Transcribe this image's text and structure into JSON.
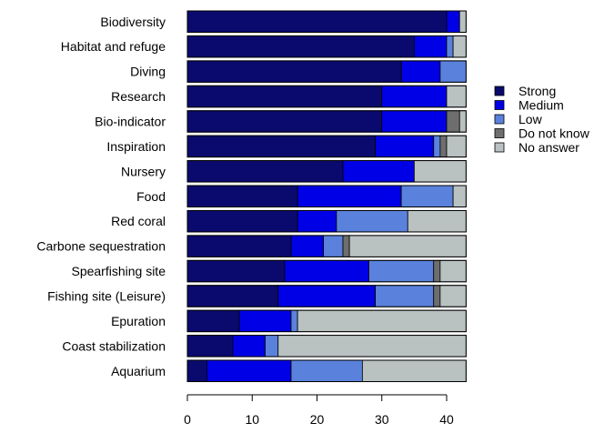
{
  "chart_data": {
    "type": "bar",
    "orientation": "horizontal",
    "stacked": true,
    "title": "",
    "xlabel": "",
    "ylabel": "",
    "xlim": [
      0,
      45
    ],
    "x_ticks": [
      0,
      10,
      20,
      30,
      40
    ],
    "grid": false,
    "legend_position": "right",
    "categories": [
      "Biodiversity",
      "Habitat and refuge",
      "Diving",
      "Research",
      "Bio-indicator",
      "Inspiration",
      "Nursery",
      "Food",
      "Red coral",
      "Carbone sequestration",
      "Spearfishing site",
      "Fishing site (Leisure)",
      "Epuration",
      "Coast stabilization",
      "Aquarium"
    ],
    "series": [
      {
        "name": "Strong",
        "color": "#0a0a6e",
        "values": [
          40,
          35,
          33,
          30,
          30,
          29,
          24,
          17,
          17,
          16,
          15,
          14,
          8,
          7,
          3
        ]
      },
      {
        "name": "Medium",
        "color": "#0000e6",
        "values": [
          2,
          5,
          6,
          10,
          10,
          9,
          11,
          16,
          6,
          5,
          13,
          15,
          8,
          5,
          13
        ]
      },
      {
        "name": "Low",
        "color": "#5a82dc",
        "values": [
          0,
          1,
          4,
          0,
          0,
          1,
          0,
          8,
          11,
          3,
          10,
          9,
          1,
          2,
          11
        ]
      },
      {
        "name": "Do not know",
        "color": "#6e6e6e",
        "values": [
          0,
          0,
          0,
          0,
          2,
          1,
          0,
          0,
          0,
          1,
          1,
          1,
          0,
          0,
          0
        ]
      },
      {
        "name": "No answer",
        "color": "#b9c1c1",
        "values": [
          1,
          2,
          0,
          3,
          1,
          3,
          8,
          2,
          9,
          18,
          4,
          4,
          26,
          29,
          16
        ]
      }
    ]
  }
}
